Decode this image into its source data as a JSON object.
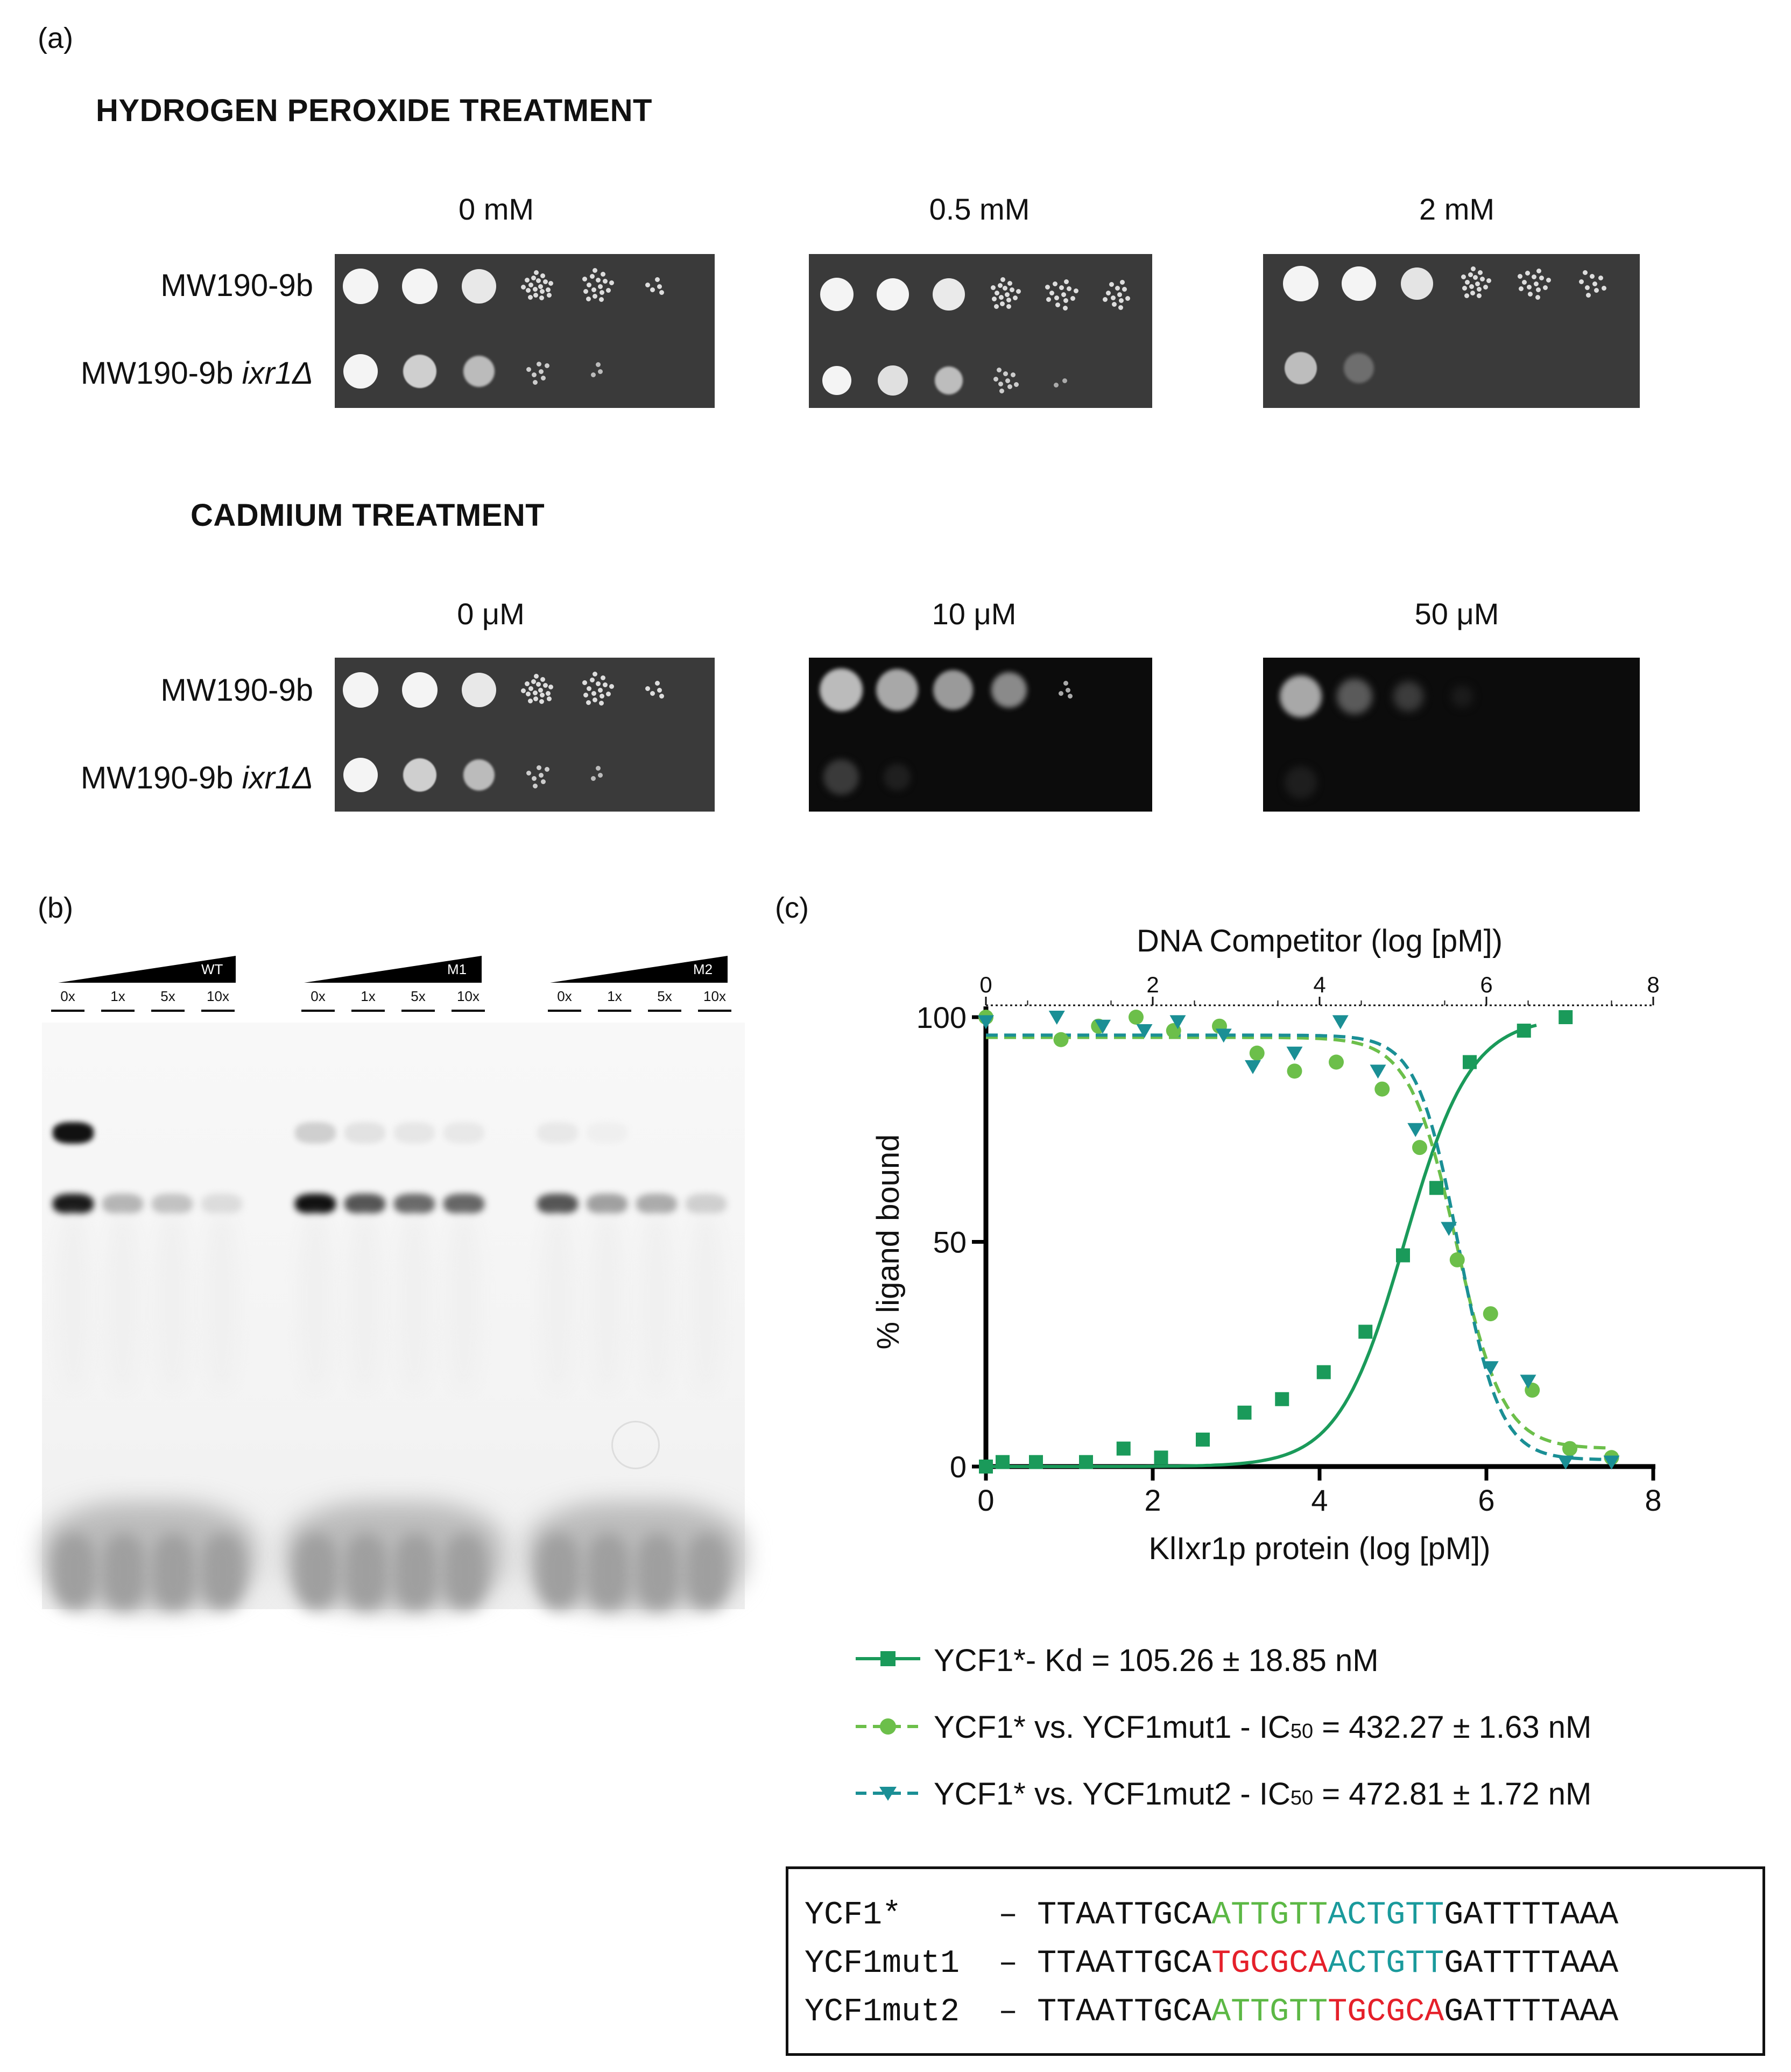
{
  "panel_a": {
    "letter": "(a)",
    "h2o2_title": "HYDROGEN PEROXIDE TREATMENT",
    "cd_title": "CADMIUM TREATMENT",
    "h2o2_concs": [
      "0 mM",
      "0.5 mM",
      "2 mM"
    ],
    "cd_concs": [
      "0 μM",
      "10 μM",
      "50 μM"
    ],
    "strain_wt": "MW190-9b",
    "strain_mut_prefix": "MW190-9b ",
    "strain_mut_gene": "ixr1Δ"
  },
  "panel_b": {
    "letter": "(b)",
    "groups": [
      {
        "name": "WT",
        "lanes": [
          "0x",
          "1x",
          "5x",
          "10x"
        ]
      },
      {
        "name": "M1",
        "lanes": [
          "0x",
          "1x",
          "5x",
          "10x"
        ]
      },
      {
        "name": "M2",
        "lanes": [
          "0x",
          "1x",
          "5x",
          "10x"
        ]
      }
    ]
  },
  "panel_c": {
    "letter": "(c)"
  },
  "chart_data": {
    "type": "scatter",
    "top_axis_label": "DNA Competitor (log [pM])",
    "xlabel": "KlIxr1p protein (log [pM])",
    "ylabel": "% ligand bound",
    "xlim": [
      0,
      8
    ],
    "ylim": [
      0,
      100
    ],
    "x_ticks": [
      "0",
      "2",
      "4",
      "6",
      "8"
    ],
    "y_ticks": [
      "0",
      "50",
      "100"
    ],
    "top_ticks": [
      "0",
      "2",
      "4",
      "6",
      "8"
    ],
    "series": [
      {
        "name": "YCF1*- Kd = 105.26 ± 18.85 nM",
        "color": "#1a9a5a",
        "marker": "square",
        "line": "solid",
        "fit": {
          "kind": "rising",
          "mid": 5.02,
          "slope": 1.1
        },
        "points": [
          [
            0,
            0
          ],
          [
            0.2,
            1
          ],
          [
            0.6,
            1
          ],
          [
            1.2,
            1
          ],
          [
            1.65,
            4
          ],
          [
            2.1,
            2
          ],
          [
            2.6,
            6
          ],
          [
            3.1,
            12
          ],
          [
            3.55,
            15
          ],
          [
            4.05,
            21
          ],
          [
            4.55,
            30
          ],
          [
            5.0,
            47
          ],
          [
            5.4,
            62
          ],
          [
            5.8,
            90
          ],
          [
            6.45,
            97
          ],
          [
            6.95,
            100
          ]
        ]
      },
      {
        "name": "YCF1* vs. YCF1mut1 - IC50 = 432.27 ± 1.63 nM",
        "color": "#6cbf4a",
        "marker": "circle",
        "line": "dashed",
        "fit": {
          "kind": "falling",
          "top": 95.5,
          "bottom": 4,
          "mid": 5.64,
          "slope": 1.55
        },
        "points": [
          [
            0,
            100
          ],
          [
            0.9,
            95
          ],
          [
            1.35,
            98
          ],
          [
            1.8,
            100
          ],
          [
            2.25,
            97
          ],
          [
            2.8,
            98
          ],
          [
            3.25,
            92
          ],
          [
            3.7,
            88
          ],
          [
            4.2,
            90
          ],
          [
            4.75,
            84
          ],
          [
            5.2,
            71
          ],
          [
            5.65,
            46
          ],
          [
            6.05,
            34
          ],
          [
            6.55,
            17
          ],
          [
            7.0,
            4
          ],
          [
            7.5,
            2
          ]
        ]
      },
      {
        "name": "YCF1* vs. YCF1mut2 - IC50 = 472.81 ± 1.72 nM",
        "color": "#1a8f95",
        "marker": "triangle-down",
        "line": "dashed",
        "fit": {
          "kind": "falling",
          "top": 96,
          "bottom": 1.5,
          "mid": 5.67,
          "slope": 1.75
        },
        "points": [
          [
            0,
            99
          ],
          [
            0.85,
            100
          ],
          [
            1.4,
            98
          ],
          [
            1.9,
            97
          ],
          [
            2.3,
            99
          ],
          [
            2.85,
            96
          ],
          [
            3.2,
            89
          ],
          [
            3.7,
            92
          ],
          [
            4.25,
            99
          ],
          [
            4.7,
            88
          ],
          [
            5.15,
            75
          ],
          [
            5.55,
            53
          ],
          [
            6.05,
            22
          ],
          [
            6.5,
            19
          ],
          [
            6.95,
            1
          ],
          [
            7.5,
            1
          ]
        ]
      }
    ]
  },
  "legend": {
    "s1_main": "YCF1*- Kd = 105.26 ± 18.85 nM",
    "s2_pre": "YCF1* vs. YCF1mut1 - IC",
    "s2_sub": "50",
    "s2_post": " = 432.27 ± 1.63 nM",
    "s3_pre": "YCF1* vs. YCF1mut2  - IC",
    "s3_sub": "50",
    "s3_post": " = 472.81 ± 1.72 nM"
  },
  "sequences": [
    {
      "name": "YCF1*    ",
      "dash": " – ",
      "parts": [
        [
          "TTAATTGCA",
          "k"
        ],
        [
          "ATTGTT",
          "g"
        ],
        [
          "ACTGTT",
          "t"
        ],
        [
          "GATTTTAAA",
          "k"
        ]
      ]
    },
    {
      "name": "YCF1mut1 ",
      "dash": " – ",
      "parts": [
        [
          "TTAATTGCA",
          "k"
        ],
        [
          "TGCGCA",
          "r"
        ],
        [
          "ACTGTT",
          "t"
        ],
        [
          "GATTTTAAA",
          "k"
        ]
      ]
    },
    {
      "name": "YCF1mut2 ",
      "dash": " – ",
      "parts": [
        [
          "TTAATTGCA",
          "k"
        ],
        [
          "ATTGTT",
          "g"
        ],
        [
          "TGCGCA",
          "r"
        ],
        [
          "GATTTTAAA",
          "k"
        ]
      ]
    }
  ]
}
